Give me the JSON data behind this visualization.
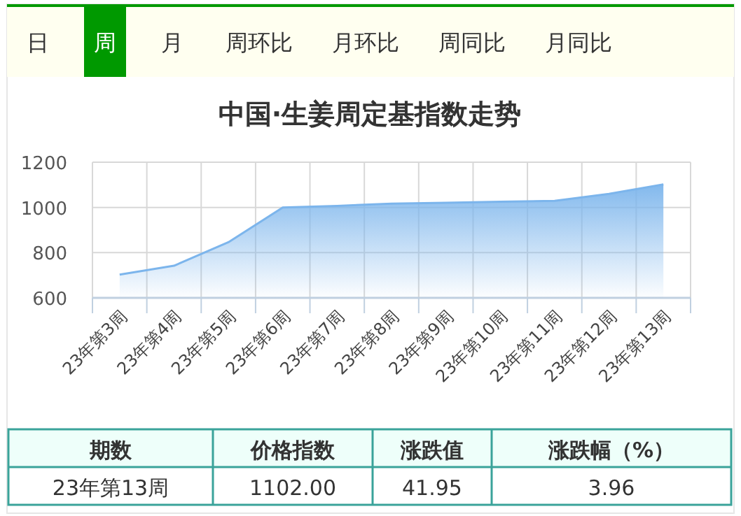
{
  "chart_data": [
    {
      "type": "other",
      "categories": [
        "日",
        "周",
        "月",
        "周环比",
        "月环比",
        "周同比",
        "月同比"
      ],
      "colors": [
        "#fffff0",
        "#009900",
        "#fffff0",
        "#fffff0",
        "#fffff0",
        "#fffff0",
        "#fffff0"
      ]
    },
    {
      "type": "area",
      "title": "中国·生姜周定基指数走势",
      "categories": [
        "23年第3周",
        "23年第4周",
        "23年第5周",
        "23年第6周",
        "23年第7周",
        "23年第8周",
        "23年第9周",
        "23年第10周",
        "23年第11周",
        "23年第12周",
        "23年第13周"
      ],
      "series": [
        {
          "color": "#7cb5ec",
          "values": [
            703,
            742,
            846,
            1000,
            1007,
            1017,
            1021,
            1025,
            1029,
            1060,
            1102
          ]
        }
      ],
      "ylim": [
        600,
        1200
      ],
      "yticks": [
        600,
        800,
        1000,
        1200
      ],
      "grid": true
    },
    {
      "type": "other",
      "categories": [
        "期数",
        "价格指数",
        "涨跌值",
        "涨跌幅（%）"
      ],
      "annotations": [
        "23年第13周",
        "1102.00",
        "41.95",
        "3.96"
      ]
    }
  ]
}
